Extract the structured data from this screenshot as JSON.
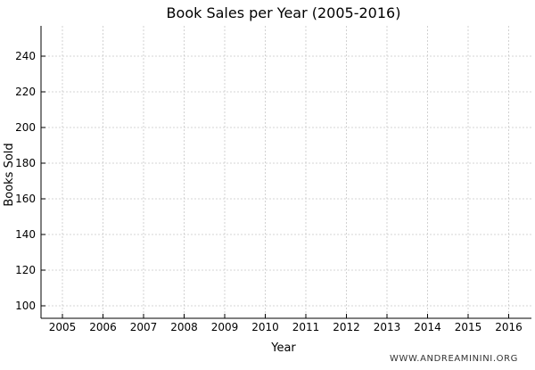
{
  "chart_data": {
    "type": "line",
    "title": "Book Sales per Year (2005-2016)",
    "xlabel": "Year",
    "ylabel": "Books Sold",
    "x": [
      "2005",
      "2006",
      "2007",
      "2008",
      "2009",
      "2010",
      "2011",
      "2012",
      "2013",
      "2014",
      "2015",
      "2016"
    ],
    "x_ticks": [
      "2005",
      "2006",
      "2007",
      "2008",
      "2009",
      "2010",
      "2011",
      "2012",
      "2013",
      "2014",
      "2015",
      "2016"
    ],
    "y_ticks": [
      "100",
      "120",
      "140",
      "160",
      "180",
      "200",
      "220",
      "240"
    ],
    "ylim": [
      93,
      257
    ],
    "series": [],
    "grid": true,
    "watermark": "WWW.ANDREAMININI.ORG"
  }
}
